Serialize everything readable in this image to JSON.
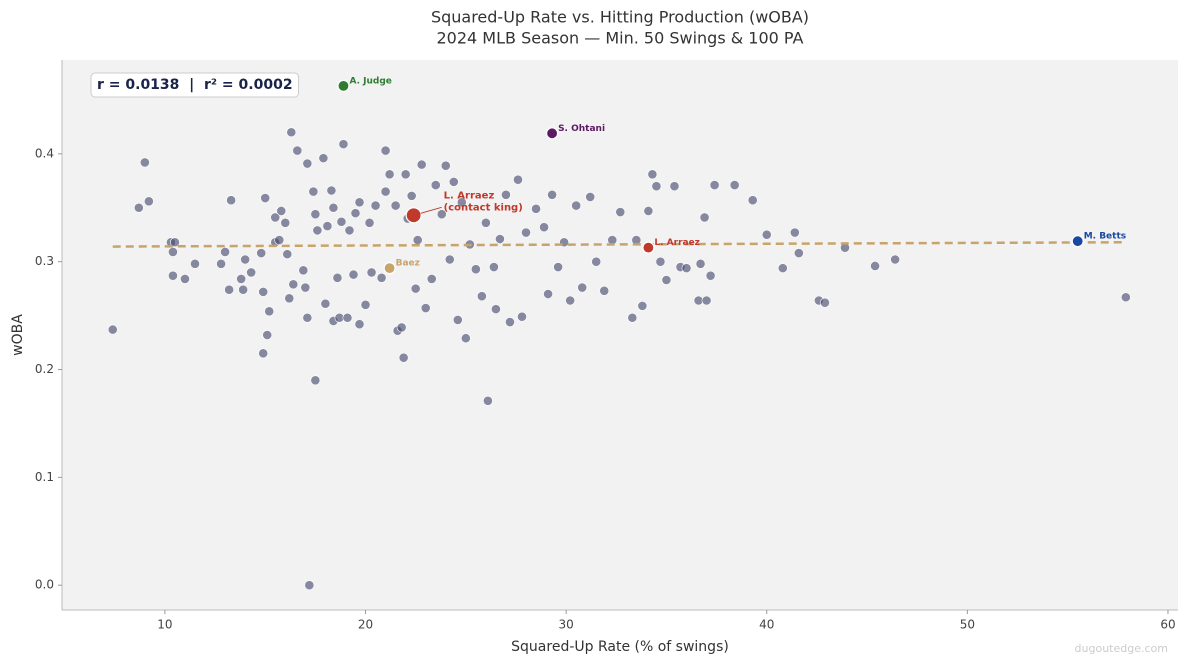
{
  "chart_data": {
    "type": "scatter",
    "title": "Squared-Up Rate vs. Hitting Production (wOBA)",
    "subtitle": "2024 MLB Season — Min. 50 Swings & 100 PA",
    "x_label": "Squared-Up Rate (% of swings)",
    "y_label": "wOBA",
    "xlim": [
      4.87,
      60.5
    ],
    "ylim": [
      -0.023,
      0.487
    ],
    "xticks": [
      10,
      20,
      30,
      40,
      50,
      60
    ],
    "yticks": [
      {
        "value": 0,
        "label": "0.0"
      },
      0.1,
      0.2,
      0.3,
      0.4
    ],
    "grid": false,
    "stat_annotation": "r = 0.0138  |  r² = 0.0002",
    "watermark": "dugoutedge.com",
    "series": [
      {
        "color": "#4a4f72",
        "x": [
          7.4,
          8.7,
          9.0,
          9.2,
          10.3,
          10.4,
          10.4,
          10.5,
          11.0,
          11.5,
          12.8,
          13.0,
          13.2,
          13.3,
          13.8,
          13.9,
          14.0,
          14.3,
          14.8,
          14.9,
          14.9,
          15.0,
          15.1,
          15.2,
          15.5,
          15.5,
          15.7,
          15.8,
          16.0,
          16.1,
          16.2,
          16.3,
          16.4,
          16.6,
          16.9,
          17.0,
          17.1,
          17.1,
          17.2,
          17.4,
          17.5,
          17.5,
          17.6,
          17.9,
          18.0,
          18.1,
          18.3,
          18.4,
          18.4,
          18.6,
          18.7,
          18.8,
          18.9,
          19.1,
          19.2,
          19.4,
          19.5,
          19.7,
          19.7,
          20.0,
          20.2,
          20.3,
          20.5,
          20.8,
          21.0,
          21.0,
          21.2,
          21.5,
          21.6,
          21.8,
          21.9,
          22.0,
          22.1,
          22.3,
          22.5,
          22.6,
          22.8,
          23.0,
          23.3,
          23.5,
          23.8,
          24.0,
          24.2,
          24.4,
          24.6,
          24.8,
          25.0,
          25.2,
          25.5,
          25.8,
          26.0,
          26.1,
          26.4,
          26.5,
          26.7,
          27.0,
          27.2,
          27.6,
          27.8,
          28.0,
          28.5,
          28.9,
          29.1,
          29.3,
          29.6,
          29.9,
          30.2,
          30.5,
          30.8,
          31.2,
          31.5,
          31.9,
          32.3,
          32.7,
          33.3,
          33.5,
          33.8,
          34.1,
          34.3,
          34.5,
          34.7,
          35.0,
          35.4,
          35.7,
          36.0,
          36.6,
          36.7,
          36.9,
          37.0,
          37.2,
          37.4,
          38.4,
          39.3,
          40.0,
          40.8,
          41.4,
          41.6,
          42.6,
          42.9,
          43.9,
          45.4,
          46.4,
          57.9
        ],
        "values": [
          0.237,
          0.35,
          0.392,
          0.356,
          0.318,
          0.309,
          0.287,
          0.318,
          0.284,
          0.298,
          0.298,
          0.309,
          0.274,
          0.357,
          0.284,
          0.274,
          0.302,
          0.29,
          0.308,
          0.215,
          0.272,
          0.359,
          0.232,
          0.254,
          0.318,
          0.341,
          0.32,
          0.347,
          0.336,
          0.307,
          0.266,
          0.42,
          0.279,
          0.403,
          0.292,
          0.276,
          0.248,
          0.391,
          0.0,
          0.365,
          0.344,
          0.19,
          0.329,
          0.396,
          0.261,
          0.333,
          0.366,
          0.35,
          0.245,
          0.285,
          0.248,
          0.337,
          0.409,
          0.248,
          0.329,
          0.288,
          0.345,
          0.355,
          0.242,
          0.26,
          0.336,
          0.29,
          0.352,
          0.285,
          0.365,
          0.403,
          0.381,
          0.352,
          0.236,
          0.239,
          0.211,
          0.381,
          0.34,
          0.361,
          0.275,
          0.32,
          0.39,
          0.257,
          0.284,
          0.371,
          0.344,
          0.389,
          0.302,
          0.374,
          0.246,
          0.355,
          0.229,
          0.316,
          0.293,
          0.268,
          0.336,
          0.171,
          0.295,
          0.256,
          0.321,
          0.362,
          0.244,
          0.376,
          0.249,
          0.327,
          0.349,
          0.332,
          0.27,
          0.362,
          0.295,
          0.318,
          0.264,
          0.352,
          0.276,
          0.36,
          0.3,
          0.273,
          0.32,
          0.346,
          0.248,
          0.32,
          0.259,
          0.347,
          0.381,
          0.37,
          0.3,
          0.283,
          0.37,
          0.295,
          0.294,
          0.264,
          0.298,
          0.341,
          0.264,
          0.287,
          0.371,
          0.371,
          0.357,
          0.325,
          0.294,
          0.327,
          0.308,
          0.264,
          0.262,
          0.313,
          0.296,
          0.302,
          0.267
        ]
      }
    ],
    "trend_line": {
      "color": "#c8a46a",
      "x": [
        7.4,
        57.8
      ],
      "values": [
        0.314,
        0.318
      ]
    },
    "highlights": [
      {
        "name": "A. Judge",
        "x": 18.9,
        "value": 0.463,
        "color": "#2e7d32"
      },
      {
        "name": "S. Ohtani",
        "x": 29.3,
        "value": 0.419,
        "color": "#5c1a63"
      },
      {
        "name": "M. Betts",
        "x": 55.5,
        "value": 0.319,
        "color": "#1a47a0"
      },
      {
        "name": "L. Arraez",
        "x": 34.1,
        "value": 0.313,
        "color": "#c0392b"
      },
      {
        "name": "Baez",
        "x": 21.2,
        "value": 0.294,
        "color": "#c8a46a"
      },
      {
        "name": "L. Arraez",
        "note": "(contact king)",
        "x": 22.4,
        "value": 0.343,
        "color": "#c0392b"
      }
    ]
  }
}
